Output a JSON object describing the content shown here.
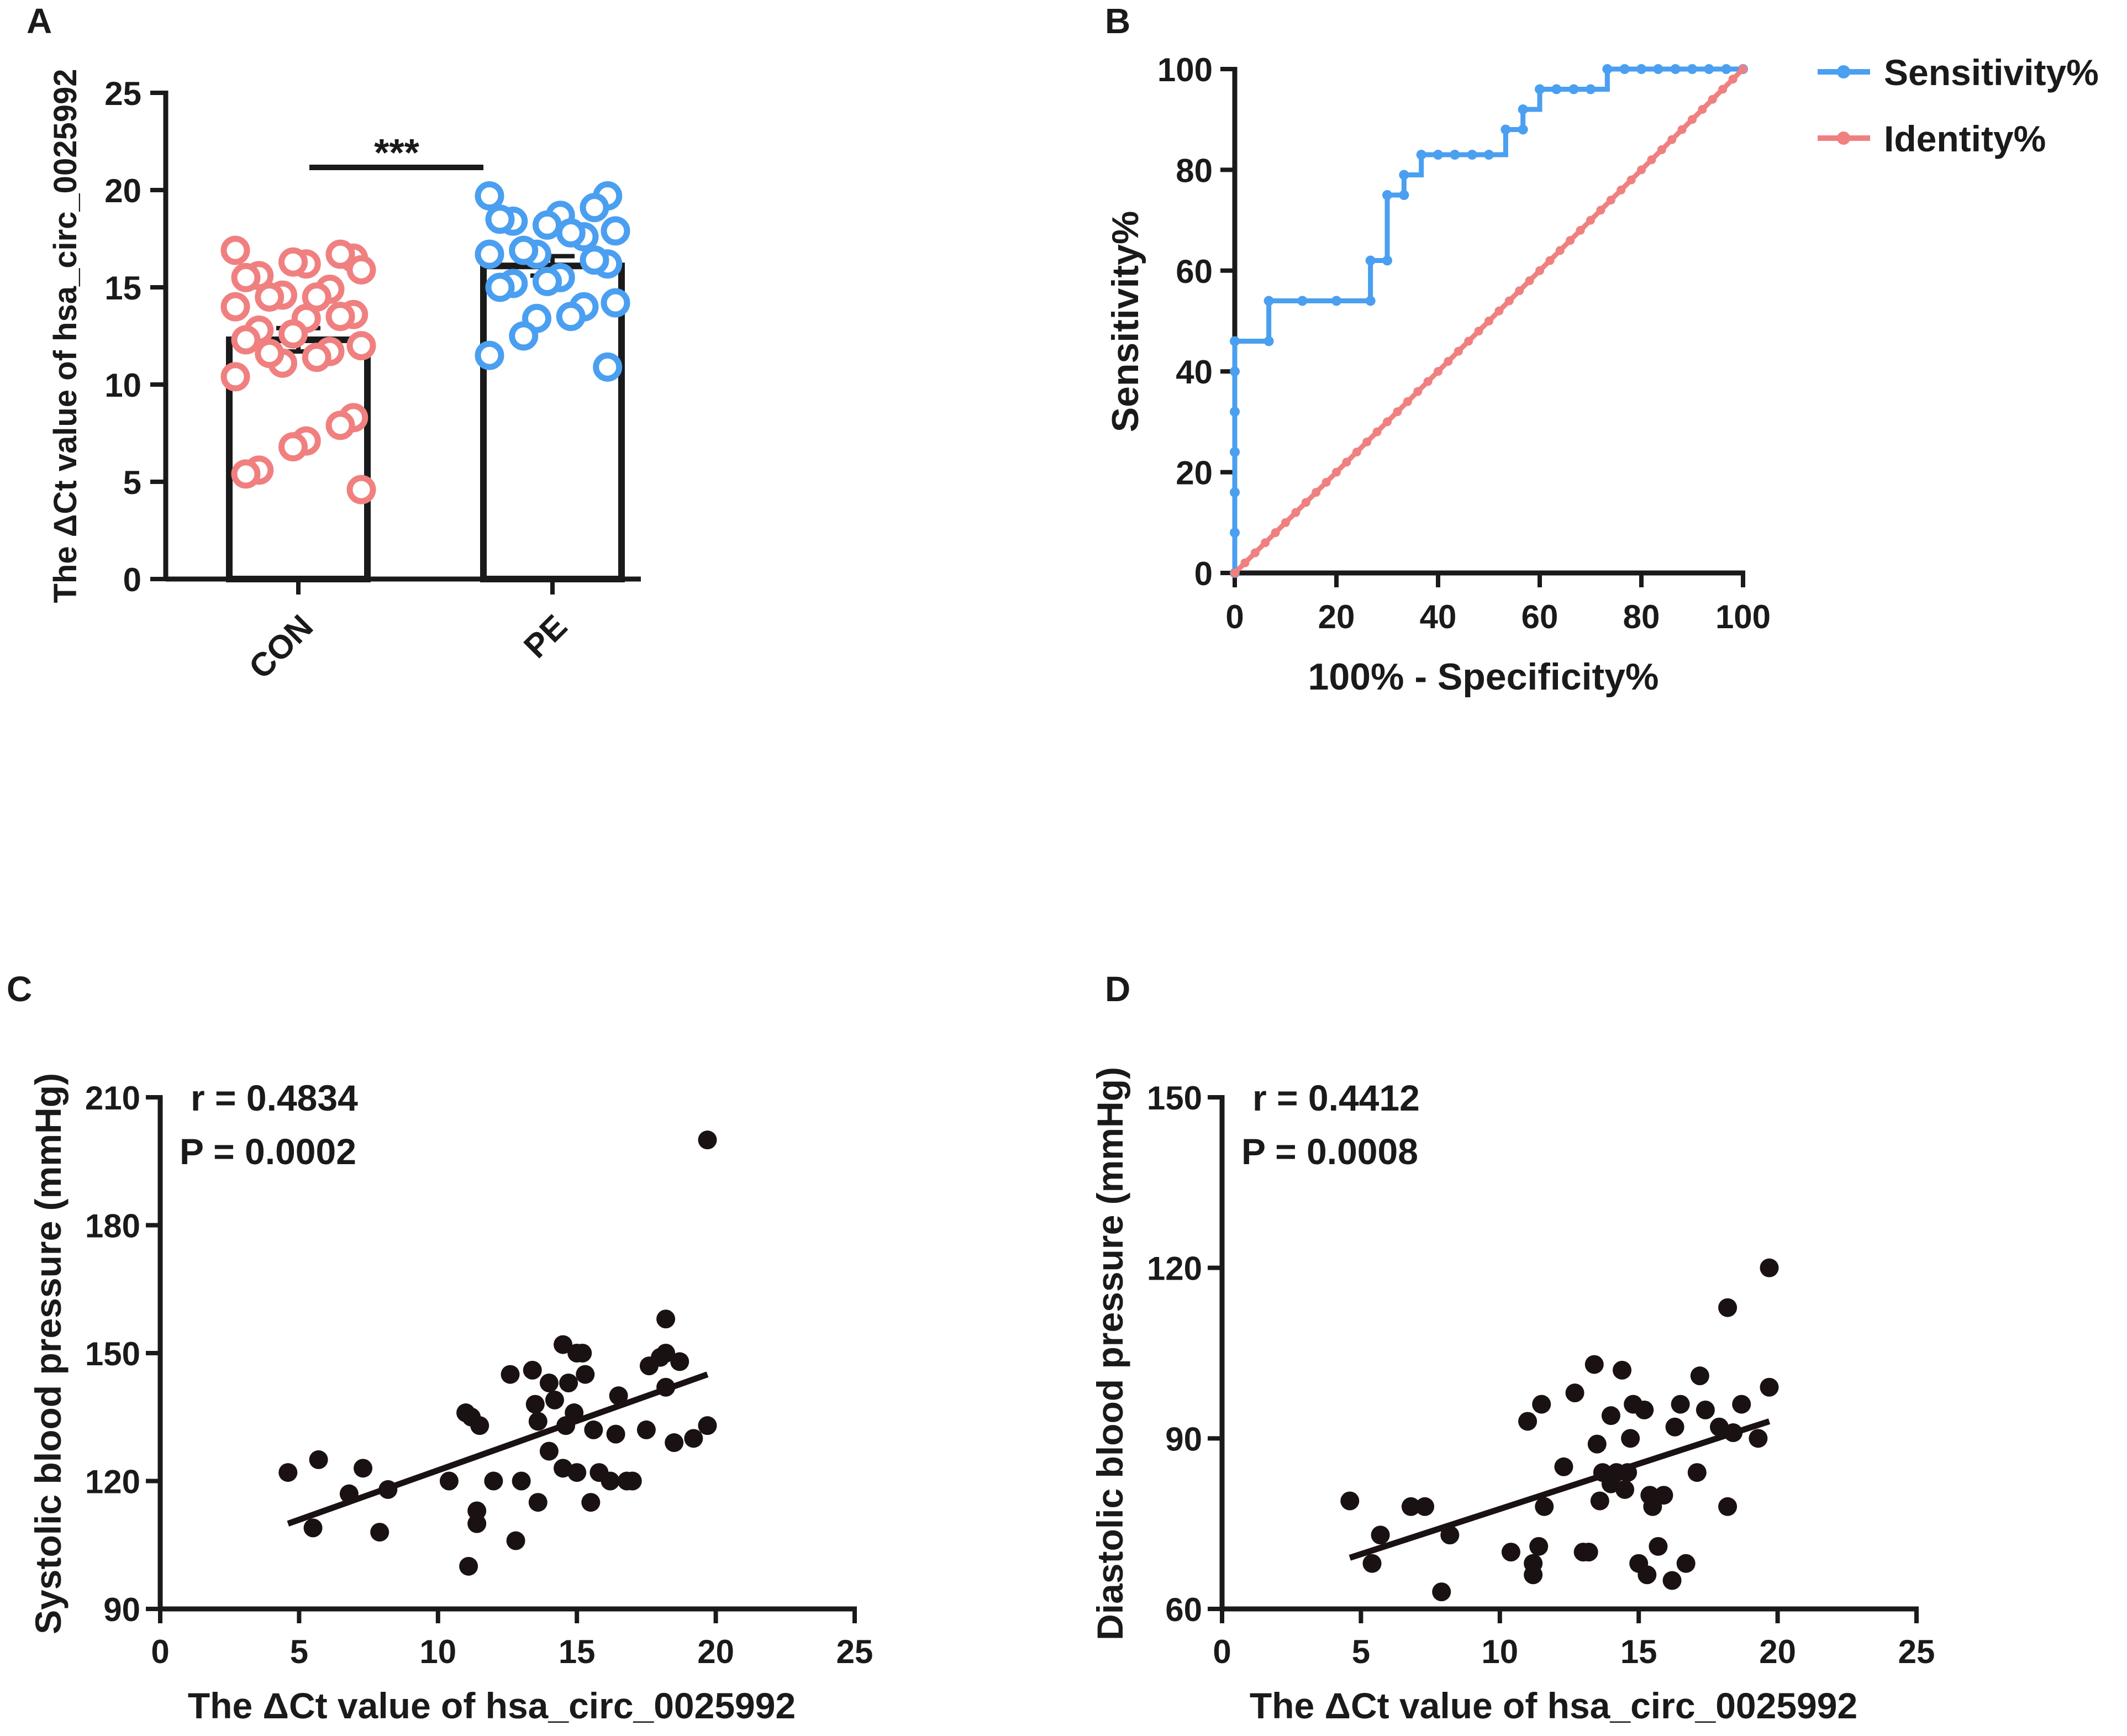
{
  "colors": {
    "axis": "#1a1a1a",
    "con": "#f08080",
    "pe": "#4a9ff0",
    "sensitivity": "#4a9ff0",
    "identity": "#f08080",
    "point": "#1a1212"
  },
  "chart_data": [
    {
      "panel": "A",
      "type": "bar",
      "title": "",
      "ylabel": "The ΔCt  value of hsa_circ_0025992",
      "xlabel": "",
      "categories": [
        "CON",
        "PE"
      ],
      "values": [
        12.3,
        16.1
      ],
      "sem": [
        0.6,
        0.5
      ],
      "ylim": [
        0,
        25
      ],
      "yticks": [
        "0",
        "5",
        "10",
        "15",
        "20",
        "25"
      ],
      "significance": "***",
      "points": [
        [
          16.9,
          16.5,
          16.7,
          16.2,
          16.3,
          15.6,
          15.5,
          15.9,
          14.9,
          14.5,
          14.6,
          14.5,
          14.0,
          13.6,
          13.5,
          13.4,
          12.6,
          12.8,
          12.3,
          12.0,
          11.7,
          11.4,
          11.1,
          11.6,
          10.4,
          8.3,
          7.9,
          7.1,
          6.8,
          5.6,
          5.4,
          4.6
        ],
        [
          19.7,
          19.7,
          19.1,
          18.7,
          18.2,
          18.4,
          18.5,
          17.9,
          17.6,
          17.8,
          16.7,
          16.9,
          16.7,
          16.2,
          16.4,
          15.5,
          15.3,
          15.2,
          15.0,
          14.2,
          14.0,
          13.5,
          13.4,
          12.5,
          11.5,
          10.9
        ]
      ]
    },
    {
      "panel": "B",
      "type": "line",
      "title": "",
      "xlabel": "100% - Specificity%",
      "ylabel": "Sensitivity%",
      "xlim": [
        0,
        100
      ],
      "ylim": [
        0,
        100
      ],
      "xticks": [
        "0",
        "20",
        "40",
        "60",
        "80",
        "100"
      ],
      "yticks": [
        "0",
        "20",
        "40",
        "60",
        "80",
        "100"
      ],
      "legend_position": "top-right",
      "series": [
        {
          "name": "Sensitivity%",
          "x": [
            0,
            0,
            0,
            0,
            0,
            0,
            0,
            6.7,
            6.7,
            13.3,
            20,
            26.7,
            26.7,
            30,
            30,
            33.3,
            33.3,
            36.7,
            40,
            43.3,
            46.7,
            50,
            53.3,
            56.7,
            56.7,
            60,
            63.3,
            66.7,
            70,
            73.3,
            76.7,
            80,
            83.3,
            86.7,
            90,
            93.3,
            96.7,
            100
          ],
          "y": [
            0,
            8,
            16,
            24,
            32,
            40,
            46,
            46,
            54,
            54,
            54,
            54,
            62,
            62,
            75,
            75,
            79,
            83,
            83,
            83,
            83,
            83,
            88,
            88,
            92,
            96,
            96,
            96,
            96,
            100,
            100,
            100,
            100,
            100,
            100,
            100,
            100,
            100
          ]
        },
        {
          "name": "Identity%",
          "x": [
            0,
            100
          ],
          "y": [
            0,
            100
          ]
        }
      ]
    },
    {
      "panel": "C",
      "type": "scatter",
      "title": "",
      "xlabel": "The ΔCt value of  hsa_circ_0025992",
      "ylabel": "Systolic blood pressure (mmHg)",
      "xlim": [
        0,
        25
      ],
      "ylim": [
        90,
        210
      ],
      "xticks": [
        "0",
        "5",
        "10",
        "15",
        "20",
        "25"
      ],
      "yticks": [
        "90",
        "120",
        "150",
        "180",
        "210"
      ],
      "stats": {
        "r": "r = 0.4834",
        "p": "P = 0.0002"
      },
      "regression": {
        "x": [
          4.6,
          19.7
        ],
        "y": [
          110,
          145
        ]
      },
      "points": [
        [
          4.6,
          122
        ],
        [
          5.5,
          109
        ],
        [
          5.7,
          125
        ],
        [
          6.8,
          117
        ],
        [
          7.3,
          123
        ],
        [
          7.9,
          108
        ],
        [
          8.2,
          118
        ],
        [
          10.4,
          120
        ],
        [
          11.0,
          136
        ],
        [
          11.1,
          100
        ],
        [
          11.2,
          135
        ],
        [
          11.4,
          113
        ],
        [
          11.4,
          110
        ],
        [
          11.5,
          133
        ],
        [
          12.0,
          120
        ],
        [
          12.6,
          145
        ],
        [
          12.8,
          106
        ],
        [
          13.0,
          120
        ],
        [
          13.4,
          146
        ],
        [
          13.5,
          138
        ],
        [
          13.6,
          115
        ],
        [
          13.6,
          134
        ],
        [
          14.0,
          127
        ],
        [
          14.0,
          143
        ],
        [
          14.2,
          139
        ],
        [
          14.5,
          152
        ],
        [
          14.5,
          123
        ],
        [
          14.6,
          133
        ],
        [
          14.7,
          143
        ],
        [
          14.9,
          136
        ],
        [
          15.0,
          122
        ],
        [
          15.0,
          150
        ],
        [
          15.2,
          150
        ],
        [
          15.3,
          145
        ],
        [
          15.5,
          115
        ],
        [
          15.6,
          132
        ],
        [
          15.8,
          122
        ],
        [
          16.2,
          120
        ],
        [
          16.4,
          131
        ],
        [
          16.5,
          140
        ],
        [
          16.8,
          120
        ],
        [
          17.0,
          120
        ],
        [
          17.5,
          132
        ],
        [
          17.6,
          147
        ],
        [
          18.0,
          149
        ],
        [
          18.2,
          150
        ],
        [
          18.2,
          158
        ],
        [
          18.2,
          142
        ],
        [
          18.5,
          129
        ],
        [
          18.7,
          148
        ],
        [
          19.2,
          130
        ],
        [
          19.7,
          133
        ],
        [
          19.7,
          200
        ]
      ]
    },
    {
      "panel": "D",
      "type": "scatter",
      "title": "",
      "xlabel": "The ΔCt value of  hsa_circ_0025992",
      "ylabel": "Diastolic blood pressure (mmHg)",
      "xlim": [
        0,
        25
      ],
      "ylim": [
        60,
        150
      ],
      "xticks": [
        "0",
        "5",
        "10",
        "15",
        "20",
        "25"
      ],
      "yticks": [
        "60",
        "90",
        "120",
        "150"
      ],
      "stats": {
        "r": "r = 0.4412",
        "p": "P = 0.0008"
      },
      "regression": {
        "x": [
          4.6,
          19.7
        ],
        "y": [
          69,
          93
        ]
      },
      "points": [
        [
          4.6,
          79
        ],
        [
          5.4,
          68
        ],
        [
          5.7,
          73
        ],
        [
          6.8,
          78
        ],
        [
          7.3,
          78
        ],
        [
          7.9,
          63
        ],
        [
          8.2,
          73
        ],
        [
          10.4,
          70
        ],
        [
          11.0,
          93
        ],
        [
          11.2,
          66
        ],
        [
          11.2,
          68
        ],
        [
          11.4,
          71
        ],
        [
          11.5,
          96
        ],
        [
          11.6,
          78
        ],
        [
          12.3,
          85
        ],
        [
          12.7,
          98
        ],
        [
          13.0,
          70
        ],
        [
          13.2,
          70
        ],
        [
          13.4,
          103
        ],
        [
          13.5,
          89
        ],
        [
          13.6,
          79
        ],
        [
          13.7,
          84
        ],
        [
          14.0,
          94
        ],
        [
          14.0,
          82
        ],
        [
          14.2,
          84
        ],
        [
          14.4,
          102
        ],
        [
          14.5,
          81
        ],
        [
          14.6,
          84
        ],
        [
          14.7,
          90
        ],
        [
          14.8,
          96
        ],
        [
          15.0,
          68
        ],
        [
          15.2,
          95
        ],
        [
          15.3,
          66
        ],
        [
          15.4,
          80
        ],
        [
          15.5,
          78
        ],
        [
          15.7,
          71
        ],
        [
          15.9,
          80
        ],
        [
          16.2,
          65
        ],
        [
          16.3,
          92
        ],
        [
          16.5,
          96
        ],
        [
          16.7,
          68
        ],
        [
          17.1,
          84
        ],
        [
          17.2,
          101
        ],
        [
          17.4,
          95
        ],
        [
          17.9,
          92
        ],
        [
          18.2,
          113
        ],
        [
          18.2,
          78
        ],
        [
          18.4,
          91
        ],
        [
          18.7,
          96
        ],
        [
          19.3,
          90
        ],
        [
          19.7,
          120
        ],
        [
          19.7,
          99
        ]
      ]
    }
  ]
}
